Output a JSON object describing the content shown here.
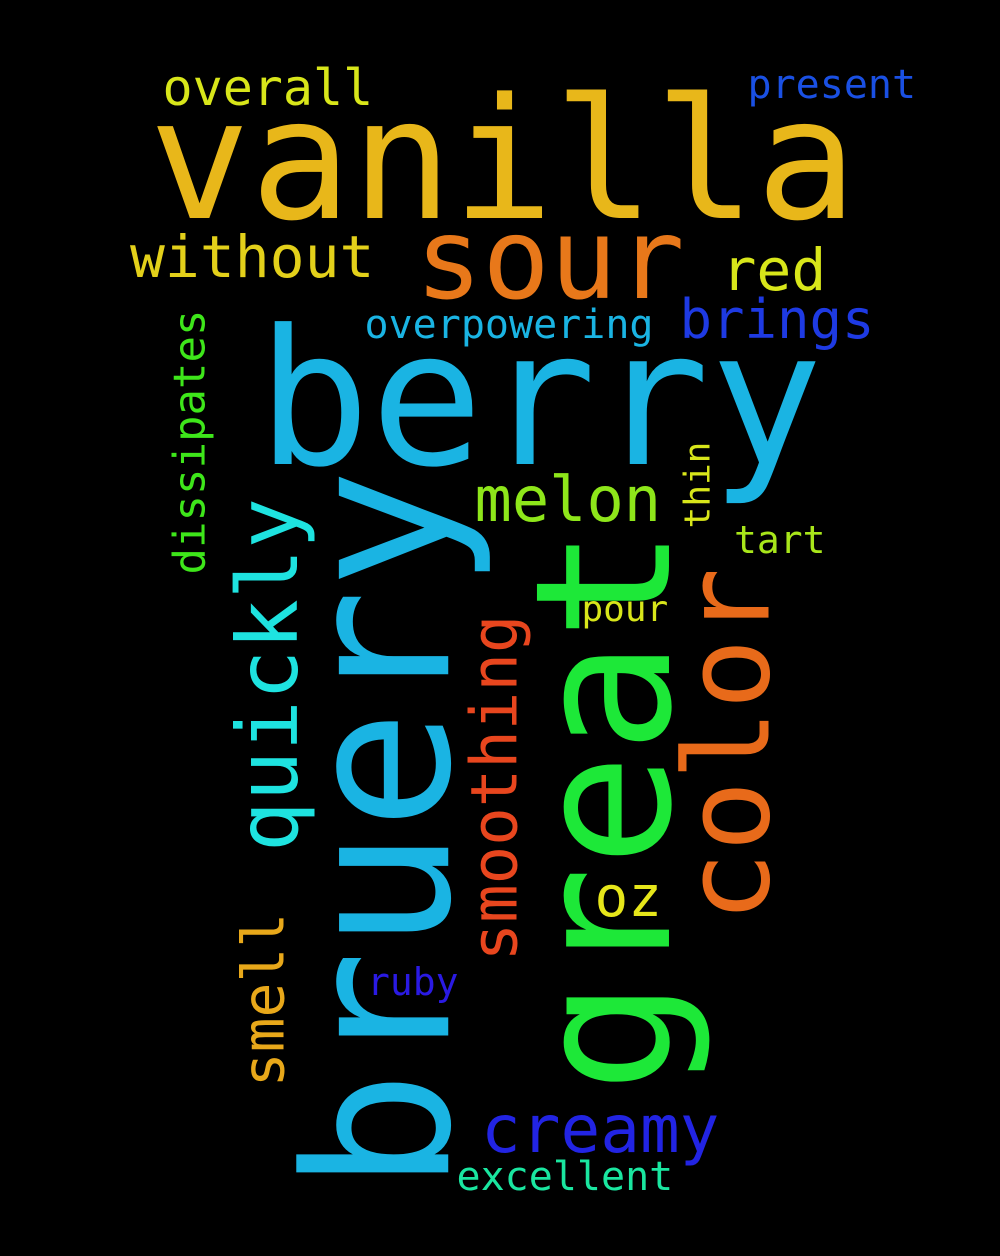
{
  "background": "#000000",
  "words": [
    {
      "text": "vanilla",
      "color": "#e8b71a",
      "orientation": "horizontal"
    },
    {
      "text": "berry",
      "color": "#1ab4e3",
      "orientation": "horizontal"
    },
    {
      "text": "bruery",
      "color": "#1ab4e3",
      "orientation": "vertical"
    },
    {
      "text": "great",
      "color": "#1de838",
      "orientation": "vertical"
    },
    {
      "text": "sour",
      "color": "#e8781a",
      "orientation": "horizontal"
    },
    {
      "text": "color",
      "color": "#e86a1a",
      "orientation": "vertical"
    },
    {
      "text": "quickly",
      "color": "#1ee3e0",
      "orientation": "vertical"
    },
    {
      "text": "smoothing",
      "color": "#e8461e",
      "orientation": "vertical"
    },
    {
      "text": "melon",
      "color": "#8ee61a",
      "orientation": "horizontal"
    },
    {
      "text": "creamy",
      "color": "#2224e3",
      "orientation": "horizontal"
    },
    {
      "text": "without",
      "color": "#e3d01a",
      "orientation": "horizontal"
    },
    {
      "text": "brings",
      "color": "#1e3ae3",
      "orientation": "horizontal"
    },
    {
      "text": "red",
      "color": "#d8e61a",
      "orientation": "horizontal"
    },
    {
      "text": "smell",
      "color": "#e8a81a",
      "orientation": "vertical"
    },
    {
      "text": "overall",
      "color": "#d8e61a",
      "orientation": "horizontal"
    },
    {
      "text": "dissipates",
      "color": "#3ee61a",
      "orientation": "vertical"
    },
    {
      "text": "oz",
      "color": "#e6e61a",
      "orientation": "horizontal"
    },
    {
      "text": "overpowering",
      "color": "#1ab4e3",
      "orientation": "horizontal"
    },
    {
      "text": "present",
      "color": "#1a50e3",
      "orientation": "horizontal"
    },
    {
      "text": "excellent",
      "color": "#1ae6a0",
      "orientation": "horizontal"
    },
    {
      "text": "ruby",
      "color": "#2a1ae3",
      "orientation": "horizontal"
    },
    {
      "text": "thin",
      "color": "#d8e61a",
      "orientation": "vertical"
    },
    {
      "text": "pour",
      "color": "#d8e61a",
      "orientation": "horizontal"
    },
    {
      "text": "tart",
      "color": "#a8e61a",
      "orientation": "horizontal"
    }
  ]
}
